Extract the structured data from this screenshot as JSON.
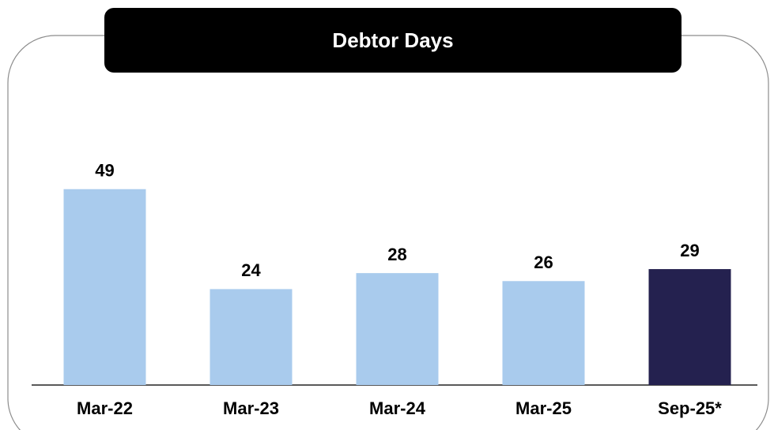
{
  "chart_data": {
    "type": "bar",
    "title": "Debtor Days",
    "categories": [
      "Mar-22",
      "Mar-23",
      "Mar-24",
      "Mar-25",
      "Sep-25*"
    ],
    "values": [
      49,
      24,
      28,
      26,
      29
    ],
    "colors": [
      "#a9cbed",
      "#a9cbed",
      "#a9cbed",
      "#a9cbed",
      "#24214f"
    ],
    "ylim": [
      0,
      60
    ]
  }
}
